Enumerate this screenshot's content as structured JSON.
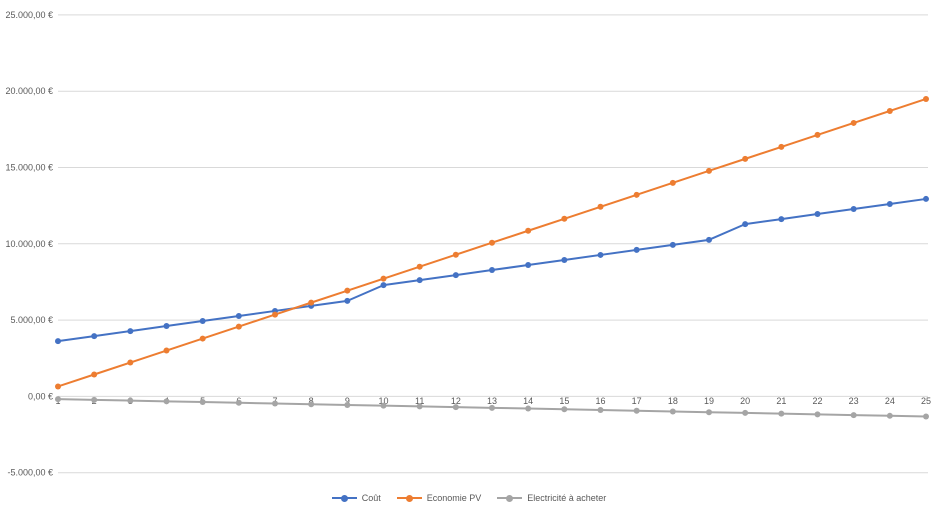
{
  "chart_data": {
    "type": "line",
    "title": "",
    "xlabel": "",
    "ylabel": "",
    "x": [
      "1",
      "2",
      "3",
      "4",
      "5",
      "6",
      "7",
      "8",
      "9",
      "10",
      "11",
      "12",
      "13",
      "14",
      "15",
      "16",
      "17",
      "18",
      "19",
      "20",
      "21",
      "22",
      "23",
      "24",
      "25"
    ],
    "series": [
      {
        "name": "Coût",
        "color": "#4472C4",
        "values": [
          3620,
          3950,
          4280,
          4610,
          4940,
          5270,
          5600,
          5930,
          6260,
          7290,
          7620,
          7950,
          8280,
          8610,
          8940,
          9270,
          9600,
          9930,
          10260,
          11290,
          11620,
          11950,
          12280,
          12610,
          12940
        ]
      },
      {
        "name": "Economie PV",
        "color": "#ED7D31",
        "values": [
          650,
          1435,
          2220,
          3005,
          3790,
          4575,
          5360,
          6145,
          6930,
          7715,
          8500,
          9285,
          10070,
          10855,
          11640,
          12425,
          13210,
          13995,
          14780,
          15565,
          16350,
          17135,
          17920,
          18705,
          19490
        ]
      },
      {
        "name": "Electricité à acheter",
        "color": "#A5A5A5",
        "values": [
          -180,
          -227,
          -275,
          -322,
          -370,
          -417,
          -465,
          -512,
          -560,
          -607,
          -655,
          -702,
          -750,
          -797,
          -845,
          -892,
          -940,
          -987,
          -1035,
          -1082,
          -1130,
          -1177,
          -1225,
          -1272,
          -1320
        ]
      }
    ],
    "ylim": [
      -5000,
      25000
    ],
    "yticks": [
      {
        "value": 25000,
        "label": "25.000,00 €"
      },
      {
        "value": 20000,
        "label": "20.000,00 €"
      },
      {
        "value": 15000,
        "label": "15.000,00 €"
      },
      {
        "value": 10000,
        "label": "10.000,00 €"
      },
      {
        "value": 5000,
        "label": "5.000,00 €"
      },
      {
        "value": 0,
        "label": "0,00 €"
      },
      {
        "value": -5000,
        "label": "-5.000,00 €"
      }
    ],
    "grid": "horizontal",
    "grid_color": "#D9D9D9",
    "tick_text_color": "#595959",
    "legend_position": "bottom"
  }
}
